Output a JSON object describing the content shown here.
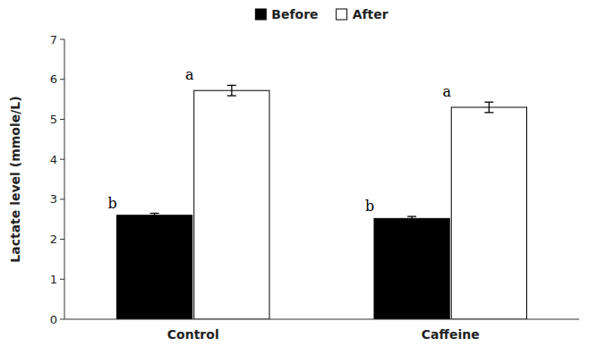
{
  "chart_data": {
    "type": "bar",
    "categories": [
      "Control",
      "Caffeine"
    ],
    "series": [
      {
        "name": "Before",
        "color": "#000000",
        "values": [
          2.6,
          2.52
        ],
        "errors": [
          0.05,
          0.05
        ]
      },
      {
        "name": "After",
        "color": "#ffffff",
        "values": [
          5.72,
          5.3
        ],
        "errors": [
          0.13,
          0.13
        ]
      }
    ],
    "ylabel": "Lactate level (mmole/L)",
    "ylim": [
      0,
      7
    ],
    "yticks": [
      0,
      1,
      2,
      3,
      4,
      5,
      6,
      7
    ],
    "grid": false,
    "legend": "top",
    "annotations": [
      {
        "text": "b",
        "category": "Control",
        "series": "Before"
      },
      {
        "text": "a",
        "category": "Control",
        "series": "After"
      },
      {
        "text": "b",
        "category": "Caffeine",
        "series": "Before"
      },
      {
        "text": "a",
        "category": "Caffeine",
        "series": "After"
      }
    ]
  }
}
